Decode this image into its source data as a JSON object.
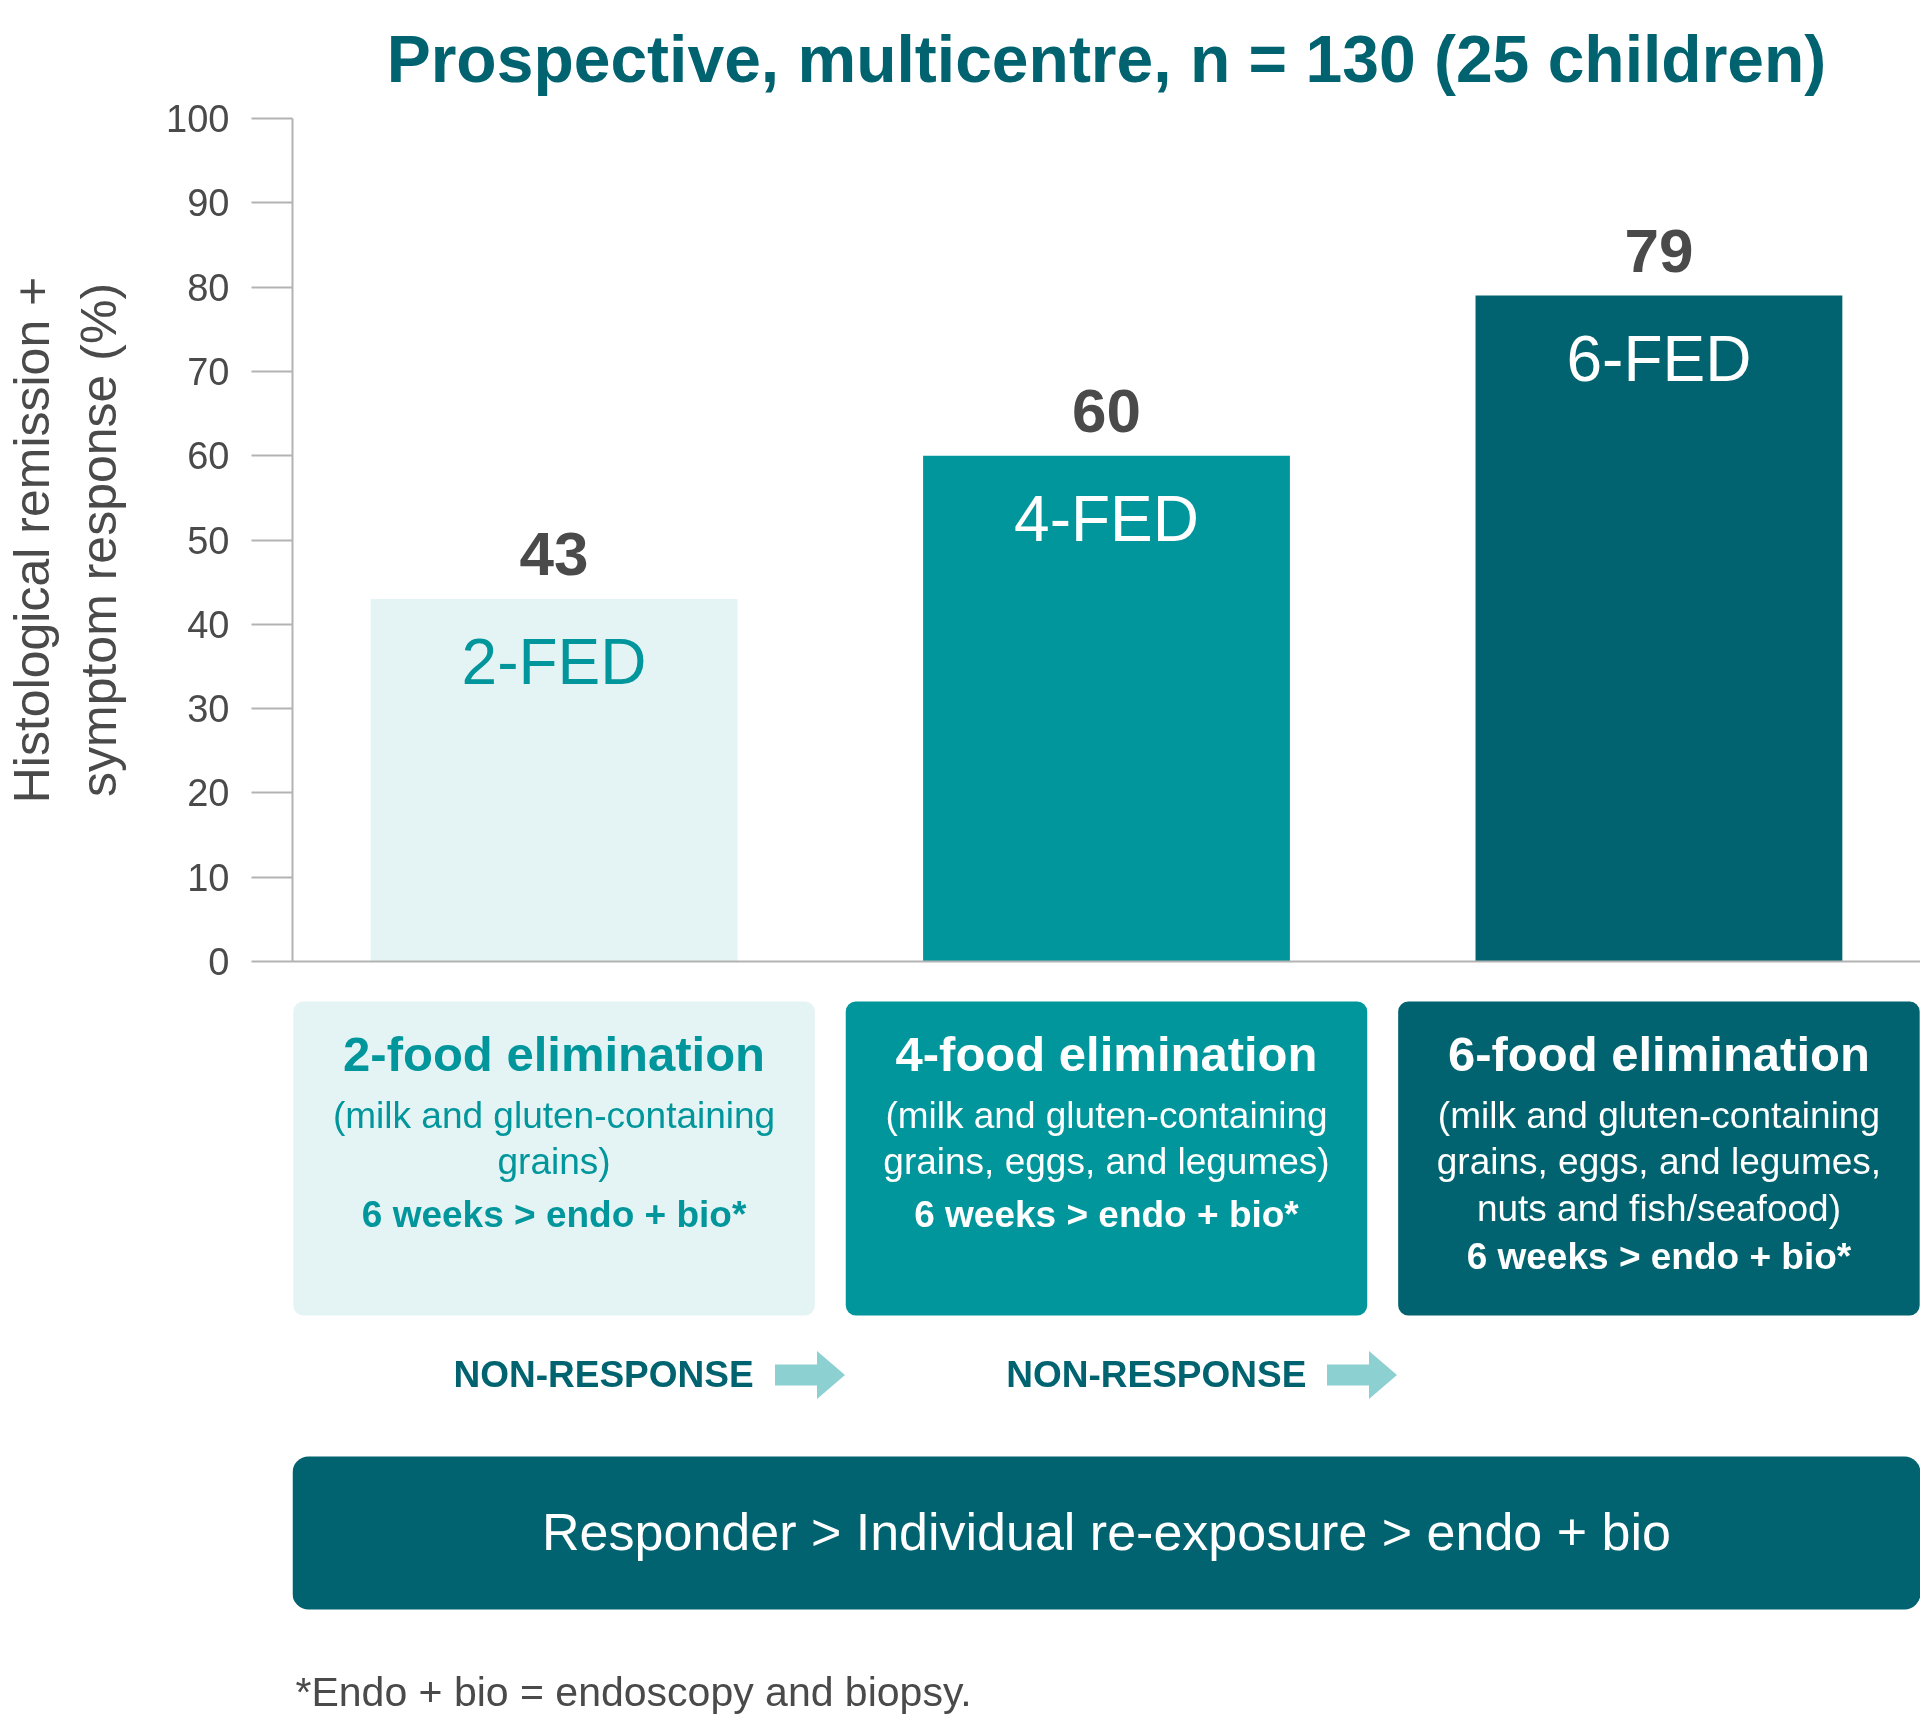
{
  "chart_data": {
    "type": "bar",
    "title": "Prospective, multicentre, n = 130 (25 children)",
    "ylabel": "Histological remission + symptom response (%)",
    "categories": [
      "2-FED",
      "4-FED",
      "6-FED"
    ],
    "values": [
      43,
      60,
      79
    ],
    "colors": [
      "#e4f3f3",
      "#00969c",
      "#00636f"
    ],
    "ylim": [
      0,
      100
    ],
    "yticks": [
      0,
      10,
      20,
      30,
      40,
      50,
      60,
      70,
      80,
      90,
      100
    ],
    "data_labels": true,
    "annotations": [
      "2-food elimination",
      "(milk and gluten-containing grains)",
      "6 weeks > endo + bio*",
      "4-food elimination",
      "(milk and gluten-containing grains, eggs, and legumes)",
      "6 weeks > endo + bio*",
      "6-food elimination",
      "(milk and gluten-containing grains, eggs, and legumes, nuts and fish/seafood)",
      "6 weeks > endo + bio*",
      "NON-RESPONSE",
      "NON-RESPONSE",
      "Responder > Individual re-exposure > endo + bio",
      "*Endo + bio = endoscopy and biopsy."
    ]
  }
}
